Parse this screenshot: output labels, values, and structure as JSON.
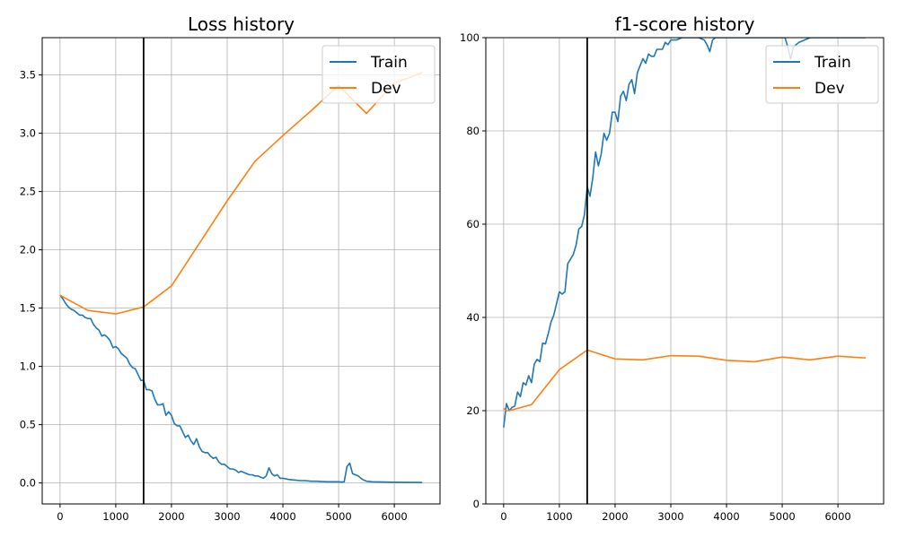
{
  "chart_data": [
    {
      "type": "line",
      "title": "Loss history",
      "xlabel": "",
      "ylabel": "",
      "xlim": [
        -320,
        6820
      ],
      "ylim": [
        -0.18,
        3.82
      ],
      "x_ticks": [
        0,
        1000,
        2000,
        3000,
        4000,
        5000,
        6000
      ],
      "x_tick_labels": [
        "0",
        "1000",
        "2000",
        "3000",
        "4000",
        "5000",
        "6000"
      ],
      "y_ticks": [
        0.0,
        0.5,
        1.0,
        1.5,
        2.0,
        2.5,
        3.0,
        3.5
      ],
      "y_tick_labels": [
        "0.0",
        "0.5",
        "1.0",
        "1.5",
        "2.0",
        "2.5",
        "3.0",
        "3.5"
      ],
      "grid": true,
      "legend_position": "top-right",
      "vline_x": 1500,
      "series": [
        {
          "name": "Train",
          "color": "#1f77b4",
          "points": [
            [
              0,
              1.61
            ],
            [
              50,
              1.58
            ],
            [
              100,
              1.54
            ],
            [
              150,
              1.51
            ],
            [
              200,
              1.49
            ],
            [
              250,
              1.48
            ],
            [
              300,
              1.46
            ],
            [
              350,
              1.44
            ],
            [
              400,
              1.44
            ],
            [
              450,
              1.42
            ],
            [
              500,
              1.41
            ],
            [
              550,
              1.41
            ],
            [
              600,
              1.36
            ],
            [
              650,
              1.33
            ],
            [
              700,
              1.31
            ],
            [
              750,
              1.26
            ],
            [
              800,
              1.27
            ],
            [
              850,
              1.25
            ],
            [
              900,
              1.22
            ],
            [
              950,
              1.16
            ],
            [
              1000,
              1.17
            ],
            [
              1050,
              1.15
            ],
            [
              1100,
              1.11
            ],
            [
              1150,
              1.09
            ],
            [
              1200,
              1.07
            ],
            [
              1250,
              1.02
            ],
            [
              1300,
              0.99
            ],
            [
              1350,
              0.98
            ],
            [
              1400,
              0.93
            ],
            [
              1450,
              0.88
            ],
            [
              1500,
              0.88
            ],
            [
              1550,
              0.8
            ],
            [
              1600,
              0.8
            ],
            [
              1650,
              0.79
            ],
            [
              1700,
              0.72
            ],
            [
              1750,
              0.67
            ],
            [
              1800,
              0.67
            ],
            [
              1850,
              0.68
            ],
            [
              1900,
              0.58
            ],
            [
              1950,
              0.61
            ],
            [
              2000,
              0.58
            ],
            [
              2050,
              0.51
            ],
            [
              2100,
              0.49
            ],
            [
              2150,
              0.49
            ],
            [
              2200,
              0.44
            ],
            [
              2250,
              0.39
            ],
            [
              2300,
              0.41
            ],
            [
              2350,
              0.36
            ],
            [
              2400,
              0.33
            ],
            [
              2450,
              0.38
            ],
            [
              2500,
              0.31
            ],
            [
              2550,
              0.27
            ],
            [
              2600,
              0.26
            ],
            [
              2650,
              0.26
            ],
            [
              2700,
              0.23
            ],
            [
              2750,
              0.21
            ],
            [
              2800,
              0.22
            ],
            [
              2850,
              0.18
            ],
            [
              2900,
              0.16
            ],
            [
              2950,
              0.16
            ],
            [
              3000,
              0.14
            ],
            [
              3050,
              0.12
            ],
            [
              3100,
              0.12
            ],
            [
              3150,
              0.11
            ],
            [
              3200,
              0.09
            ],
            [
              3250,
              0.1
            ],
            [
              3300,
              0.09
            ],
            [
              3350,
              0.08
            ],
            [
              3400,
              0.07
            ],
            [
              3450,
              0.07
            ],
            [
              3500,
              0.06
            ],
            [
              3550,
              0.06
            ],
            [
              3600,
              0.05
            ],
            [
              3650,
              0.04
            ],
            [
              3700,
              0.06
            ],
            [
              3750,
              0.13
            ],
            [
              3800,
              0.08
            ],
            [
              3850,
              0.06
            ],
            [
              3900,
              0.07
            ],
            [
              3950,
              0.04
            ],
            [
              4000,
              0.04
            ],
            [
              4100,
              0.03
            ],
            [
              4200,
              0.025
            ],
            [
              4300,
              0.02
            ],
            [
              4400,
              0.02
            ],
            [
              4500,
              0.015
            ],
            [
              4600,
              0.015
            ],
            [
              4700,
              0.012
            ],
            [
              4800,
              0.01
            ],
            [
              4900,
              0.01
            ],
            [
              5000,
              0.01
            ],
            [
              5050,
              0.008
            ],
            [
              5100,
              0.01
            ],
            [
              5150,
              0.14
            ],
            [
              5200,
              0.17
            ],
            [
              5250,
              0.08
            ],
            [
              5300,
              0.07
            ],
            [
              5350,
              0.06
            ],
            [
              5400,
              0.04
            ],
            [
              5450,
              0.025
            ],
            [
              5500,
              0.015
            ],
            [
              5600,
              0.01
            ],
            [
              5800,
              0.008
            ],
            [
              6000,
              0.006
            ],
            [
              6200,
              0.005
            ],
            [
              6500,
              0.004
            ]
          ]
        },
        {
          "name": "Dev",
          "color": "#ff7f0e",
          "points": [
            [
              0,
              1.61
            ],
            [
              500,
              1.48
            ],
            [
              1000,
              1.45
            ],
            [
              1500,
              1.51
            ],
            [
              2000,
              1.69
            ],
            [
              3000,
              2.42
            ],
            [
              3500,
              2.76
            ],
            [
              4000,
              2.98
            ],
            [
              4500,
              3.19
            ],
            [
              5000,
              3.41
            ],
            [
              5500,
              3.17
            ],
            [
              6000,
              3.43
            ],
            [
              6500,
              3.52
            ]
          ]
        }
      ]
    },
    {
      "type": "line",
      "title": "f1-score history",
      "xlabel": "",
      "ylabel": "",
      "xlim": [
        -320,
        6820
      ],
      "ylim": [
        0,
        100
      ],
      "x_ticks": [
        0,
        1000,
        2000,
        3000,
        4000,
        5000,
        6000
      ],
      "x_tick_labels": [
        "0",
        "1000",
        "2000",
        "3000",
        "4000",
        "5000",
        "6000"
      ],
      "y_ticks": [
        0,
        20,
        40,
        60,
        80,
        100
      ],
      "y_tick_labels": [
        "0",
        "20",
        "40",
        "60",
        "80",
        "100"
      ],
      "grid": true,
      "legend_position": "top-right",
      "vline_x": 1500,
      "series": [
        {
          "name": "Train",
          "color": "#1f77b4",
          "points": [
            [
              0,
              16.4
            ],
            [
              50,
              21.5
            ],
            [
              100,
              20.0
            ],
            [
              150,
              20.7
            ],
            [
              200,
              21.0
            ],
            [
              250,
              24.0
            ],
            [
              300,
              23.0
            ],
            [
              350,
              26.0
            ],
            [
              400,
              25.5
            ],
            [
              450,
              27.5
            ],
            [
              500,
              26.0
            ],
            [
              550,
              30.0
            ],
            [
              600,
              31.0
            ],
            [
              650,
              30.5
            ],
            [
              700,
              34.5
            ],
            [
              750,
              34.3
            ],
            [
              800,
              36.5
            ],
            [
              850,
              39.0
            ],
            [
              900,
              40.5
            ],
            [
              950,
              43.0
            ],
            [
              1000,
              45.5
            ],
            [
              1050,
              45.0
            ],
            [
              1100,
              45.5
            ],
            [
              1150,
              51.5
            ],
            [
              1200,
              52.5
            ],
            [
              1250,
              53.5
            ],
            [
              1300,
              55.5
            ],
            [
              1350,
              59.0
            ],
            [
              1400,
              59.5
            ],
            [
              1450,
              62.0
            ],
            [
              1500,
              68.0
            ],
            [
              1550,
              66.0
            ],
            [
              1600,
              70.0
            ],
            [
              1650,
              75.5
            ],
            [
              1700,
              72.5
            ],
            [
              1750,
              75.0
            ],
            [
              1800,
              79.5
            ],
            [
              1850,
              78.0
            ],
            [
              1900,
              79.5
            ],
            [
              1950,
              84.0
            ],
            [
              2000,
              84.0
            ],
            [
              2050,
              82.0
            ],
            [
              2100,
              87.5
            ],
            [
              2150,
              88.5
            ],
            [
              2200,
              86.5
            ],
            [
              2250,
              90.0
            ],
            [
              2300,
              91.0
            ],
            [
              2350,
              88.0
            ],
            [
              2400,
              92.5
            ],
            [
              2450,
              94.0
            ],
            [
              2500,
              95.5
            ],
            [
              2550,
              94.5
            ],
            [
              2600,
              96.5
            ],
            [
              2650,
              96.0
            ],
            [
              2700,
              96.0
            ],
            [
              2750,
              97.5
            ],
            [
              2800,
              97.5
            ],
            [
              2850,
              97.5
            ],
            [
              2900,
              99.0
            ],
            [
              2950,
              98.5
            ],
            [
              3000,
              99.5
            ],
            [
              3100,
              99.5
            ],
            [
              3200,
              100
            ],
            [
              3300,
              100
            ],
            [
              3400,
              100
            ],
            [
              3500,
              100
            ],
            [
              3600,
              99.5
            ],
            [
              3650,
              98.5
            ],
            [
              3700,
              97.0
            ],
            [
              3750,
              99.5
            ],
            [
              3800,
              100
            ],
            [
              4000,
              100
            ],
            [
              4200,
              100
            ],
            [
              4400,
              100
            ],
            [
              4600,
              100
            ],
            [
              4800,
              100
            ],
            [
              5000,
              100
            ],
            [
              5050,
              100
            ],
            [
              5100,
              98.0
            ],
            [
              5150,
              95.5
            ],
            [
              5200,
              98.0
            ],
            [
              5300,
              99.0
            ],
            [
              5400,
              99.5
            ],
            [
              5500,
              100
            ],
            [
              5800,
              100
            ],
            [
              6000,
              100
            ],
            [
              6200,
              100
            ],
            [
              6500,
              100
            ]
          ]
        },
        {
          "name": "Dev",
          "color": "#ff7f0e",
          "points": [
            [
              0,
              20.5
            ],
            [
              50,
              20.0
            ],
            [
              100,
              20.0
            ],
            [
              500,
              21.3
            ],
            [
              1000,
              28.8
            ],
            [
              1500,
              33.0
            ],
            [
              2000,
              31.1
            ],
            [
              2500,
              30.9
            ],
            [
              3000,
              31.8
            ],
            [
              3500,
              31.7
            ],
            [
              4000,
              30.8
            ],
            [
              4500,
              30.5
            ],
            [
              5000,
              31.5
            ],
            [
              5500,
              30.9
            ],
            [
              6000,
              31.7
            ],
            [
              6500,
              31.3
            ]
          ]
        }
      ]
    }
  ]
}
